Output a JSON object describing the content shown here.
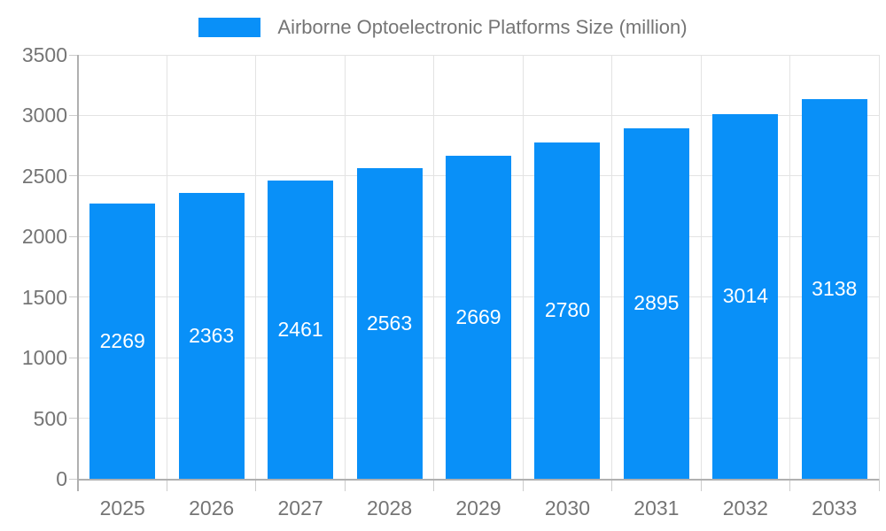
{
  "chart_data": {
    "type": "bar",
    "title": "Airborne Optoelectronic Platforms Size (million)",
    "categories": [
      "2025",
      "2026",
      "2027",
      "2028",
      "2029",
      "2030",
      "2031",
      "2032",
      "2033"
    ],
    "values": [
      2269,
      2363,
      2461,
      2563,
      2669,
      2780,
      2895,
      3014,
      3138
    ],
    "xlabel": "",
    "ylabel": "",
    "ylim": [
      0,
      3500
    ],
    "yticks": [
      0,
      500,
      1000,
      1500,
      2000,
      2500,
      3000,
      3500
    ],
    "grid": true,
    "bar_labels_visible": true,
    "legend_position": "top-center",
    "colors": {
      "bar": "#0990f8",
      "bar_label_text": "#ffffff",
      "axis_text": "#757575",
      "grid_line": "#e3e3e3",
      "axis_line": "#b0b0b0",
      "tick": "#cccccc",
      "background": "#ffffff"
    }
  }
}
